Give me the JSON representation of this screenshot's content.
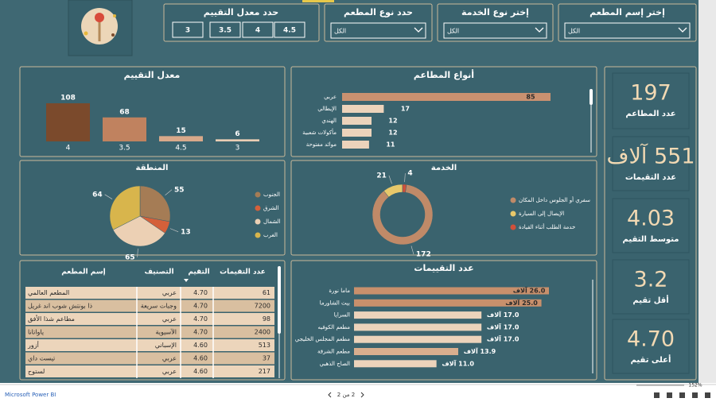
{
  "slicers": [
    {
      "title": "إختر إسم المطعم",
      "value": "الكل"
    },
    {
      "title": "إختر نوع الخدمة",
      "value": "الكل"
    },
    {
      "title": "حدد نوع المطعم",
      "value": "الكل"
    }
  ],
  "rating_slicer": {
    "title": "حدد معدل التقييم",
    "options": [
      "3",
      "3.5",
      "4",
      "4.5"
    ]
  },
  "kpis": [
    {
      "value": "197",
      "label": "عدد المطاعم"
    },
    {
      "value": "551 آلاف",
      "label": "عدد التقيمات"
    },
    {
      "value": "4.03",
      "label": "متوسط التقيم"
    },
    {
      "value": "3.2",
      "label": "أقل تقيم"
    },
    {
      "value": "4.70",
      "label": "أعلى تقيم"
    }
  ],
  "chart_data": [
    {
      "type": "bar",
      "title": "معدل التقييم",
      "categories": [
        "4",
        "3.5",
        "4.5",
        "3"
      ],
      "values": [
        108,
        68,
        15,
        6
      ],
      "colors": [
        "#7b4a2c",
        "#c0825f",
        "#d8a98a",
        "#e9cdb4"
      ]
    },
    {
      "type": "hbar",
      "title": "أنواع المطاعم",
      "categories": [
        "عربي",
        "الإيطالي",
        "الهندي",
        "مأكولات شعبية",
        "موائد مفتوحة"
      ],
      "values": [
        85,
        17,
        12,
        12,
        11
      ],
      "colors": [
        "#c99170",
        "#ecd3bb",
        "#ecd3bb",
        "#ecd3bb",
        "#ecd3bb"
      ]
    },
    {
      "type": "pie",
      "title": "المنطقة",
      "categories": [
        "الجنوب",
        "الشرق",
        "الشمال",
        "الغرب"
      ],
      "values": [
        55,
        13,
        65,
        64
      ],
      "colors": [
        "#a57c55",
        "#d4603a",
        "#ecd0b4",
        "#d8b54c"
      ]
    },
    {
      "type": "donut",
      "title": "الخدمة",
      "categories": [
        "سفري أو الجلوس داخل المكان",
        "الإيصال إلى السيارة",
        "خدمة الطلب أثناء القيادة"
      ],
      "values": [
        172,
        21,
        4
      ],
      "colors": [
        "#c08a68",
        "#e8c86a",
        "#d0503a"
      ]
    },
    {
      "type": "hbar",
      "title": "عدد التقييمات",
      "categories": [
        "ماما نورة",
        "بيت الشاورما",
        "السرايا",
        "مطعم الكوفيه",
        "مطعم المجلس الخليجي",
        "مطعم الشرقة",
        "الصاج الذهبي"
      ],
      "values": [
        26.0,
        25.0,
        17.0,
        17.0,
        17.0,
        13.9,
        11.0
      ],
      "value_labels": [
        "26.0 آلاف",
        "25.0 آلاف",
        "17.0 آلاف",
        "17.0 آلاف",
        "17.0 آلاف",
        "13.9 آلاف",
        "11.0 آلاف"
      ],
      "colors": [
        "#c8906c",
        "#c8906c",
        "#ecd3bb",
        "#ecd3bb",
        "#ecd3bb",
        "#d9ae8e",
        "#ecd3bb"
      ]
    }
  ],
  "table": {
    "headers": [
      "إسم المطعم",
      "التصنيف",
      "التقيم",
      "عدد التقيمات"
    ],
    "rows": [
      [
        "المطعم العالمي",
        "عربي",
        "4.70",
        "61"
      ],
      [
        "ذا بونتش شوب اند غريل",
        "وجبات سريعة",
        "4.70",
        "7200"
      ],
      [
        "مطاعم شذا الأفق",
        "عربي",
        "4.70",
        "98"
      ],
      [
        "ياواتانا",
        "الآسيوية",
        "4.70",
        "2400"
      ],
      [
        "أزور",
        "الإسباني",
        "4.60",
        "513"
      ],
      [
        "تيست داي",
        "عربي",
        "4.60",
        "37"
      ],
      [
        "لستوح",
        "عربي",
        "4.60",
        "217"
      ]
    ]
  },
  "footer": {
    "brand": "Microsoft Power BI",
    "page": "2 من 2",
    "zoom": "152%"
  }
}
